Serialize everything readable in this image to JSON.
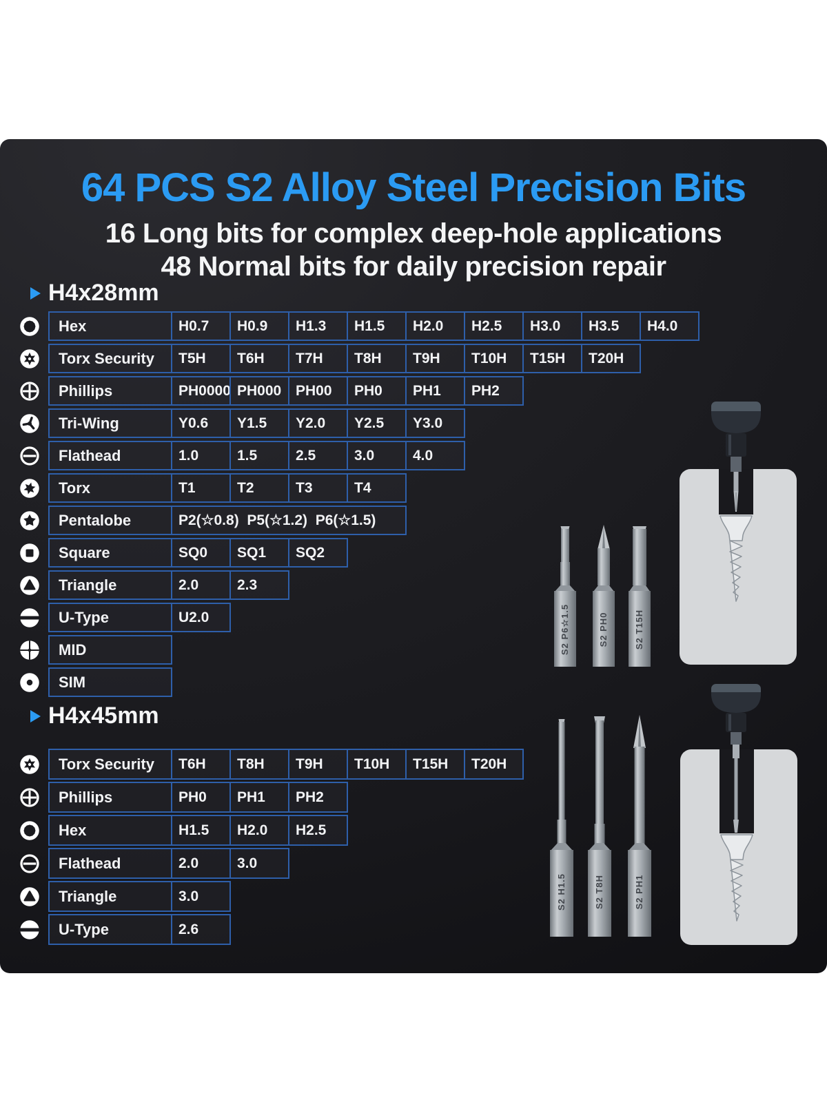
{
  "header": {
    "title": "64 PCS S2 Alloy Steel Precision Bits",
    "subtitle1": "16 Long bits for complex deep-hole applications",
    "subtitle2": "48 Normal bits for daily precision repair"
  },
  "colors": {
    "accent_blue": "#2b9bf3",
    "table_border_blue": "#2e5faa",
    "panel_dark": "#1b1b1f",
    "text_white": "#f2f3f5",
    "card_gray": "#d6d8da",
    "bit_gray": "#9ba0a6"
  },
  "sections": [
    {
      "label": "H4x28mm",
      "rows": [
        {
          "icon": "hex-icon",
          "label": "Hex",
          "values": [
            "H0.7",
            "H0.9",
            "H1.3",
            "H1.5",
            "H2.0",
            "H2.5",
            "H3.0",
            "H3.5",
            "H4.0"
          ]
        },
        {
          "icon": "torx-security-icon",
          "label": "Torx Security",
          "values": [
            "T5H",
            "T6H",
            "T7H",
            "T8H",
            "T9H",
            "T10H",
            "T15H",
            "T20H"
          ]
        },
        {
          "icon": "phillips-icon",
          "label": "Phillips",
          "values": [
            "PH0000",
            "PH000",
            "PH00",
            "PH0",
            "PH1",
            "PH2"
          ]
        },
        {
          "icon": "tri-wing-icon",
          "label": "Tri-Wing",
          "values": [
            "Y0.6",
            "Y1.5",
            "Y2.0",
            "Y2.5",
            "Y3.0"
          ]
        },
        {
          "icon": "flathead-icon",
          "label": "Flathead",
          "values": [
            "1.0",
            "1.5",
            "2.5",
            "3.0",
            "4.0"
          ]
        },
        {
          "icon": "torx-icon",
          "label": "Torx",
          "values": [
            "T1",
            "T2",
            "T3",
            "T4"
          ]
        },
        {
          "icon": "pentalobe-icon",
          "label": "Pentalobe",
          "merged": "P2(☆0.8)  P5(☆1.2)  P6(☆1.5)",
          "span": 4
        },
        {
          "icon": "square-icon",
          "label": "Square",
          "values": [
            "SQ0",
            "SQ1",
            "SQ2"
          ]
        },
        {
          "icon": "triangle-icon",
          "label": "Triangle",
          "values": [
            "2.0",
            "2.3"
          ]
        },
        {
          "icon": "u-type-icon",
          "label": "U-Type",
          "values": [
            "U2.0"
          ]
        },
        {
          "icon": "mid-icon",
          "label": "MID",
          "values": []
        },
        {
          "icon": "sim-icon",
          "label": "SIM",
          "values": []
        }
      ]
    },
    {
      "label": "H4x45mm",
      "rows": [
        {
          "icon": "torx-security-icon",
          "label": "Torx Security",
          "values": [
            "T6H",
            "T8H",
            "T9H",
            "T10H",
            "T15H",
            "T20H"
          ]
        },
        {
          "icon": "phillips-icon",
          "label": "Phillips",
          "values": [
            "PH0",
            "PH1",
            "PH2"
          ]
        },
        {
          "icon": "hex-icon",
          "label": "Hex",
          "values": [
            "H1.5",
            "H2.0",
            "H2.5"
          ]
        },
        {
          "icon": "flathead-icon",
          "label": "Flathead",
          "values": [
            "2.0",
            "3.0"
          ]
        },
        {
          "icon": "triangle-icon",
          "label": "Triangle",
          "values": [
            "3.0"
          ]
        },
        {
          "icon": "u-type-icon",
          "label": "U-Type",
          "values": [
            "2.6"
          ]
        }
      ]
    }
  ],
  "bits": {
    "short": [
      "S2  P6☆1.5",
      "S2  PH0",
      "S2  T15H"
    ],
    "long": [
      "S2  H1.5",
      "S2  T8H",
      "S2  PH1"
    ]
  }
}
